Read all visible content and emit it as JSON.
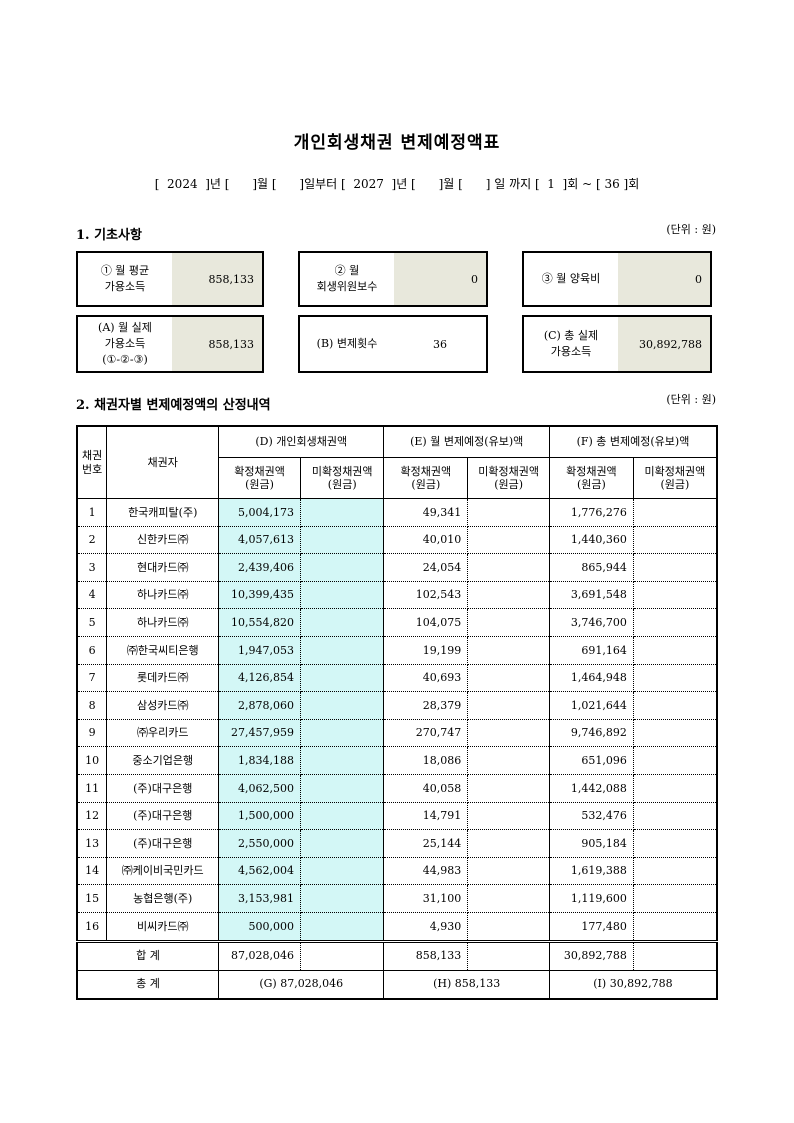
{
  "title": "개인회생채권 변제예정액표",
  "period": "[  2024  ]년 [      ]월 [      ]일부터 [  2027  ]년 [      ]월 [      ] 일 까지 [  1  ]회 ~ [ 36 ]회",
  "section1": {
    "heading": "1. 기초사항",
    "unit": "(단위 : 원)",
    "boxes": [
      {
        "label": "① 월 평균\n가용소득",
        "value": "858,133"
      },
      {
        "label": "② 월\n회생위원보수",
        "value": "0"
      },
      {
        "label": "③ 월 양육비",
        "value": "0"
      },
      {
        "label": "(A) 월 실제\n가용소득\n(①-②-③)",
        "value": "858,133"
      },
      {
        "label": "(B) 변제횟수",
        "value": "36"
      },
      {
        "label": "(C) 총 실제\n가용소득",
        "value": "30,892,788"
      }
    ]
  },
  "section2": {
    "heading": "2. 채권자별 변제예정액의 산정내역",
    "unit": "(단위 : 원)",
    "headers": {
      "no": "채권\n번호",
      "creditor": "채권자",
      "d": "(D) 개인회생채권액",
      "e": "(E) 월 변제예정(유보)액",
      "f": "(F) 총 변제예정(유보)액",
      "confirmed": "확정채권액\n(원금)",
      "unconfirmed": "미확정채권액\n(원금)"
    },
    "rows": [
      {
        "no": "1",
        "name": "한국캐피탈(주)",
        "d": "5,004,173",
        "e": "49,341",
        "f": "1,776,276"
      },
      {
        "no": "2",
        "name": "신한카드㈜",
        "d": "4,057,613",
        "e": "40,010",
        "f": "1,440,360"
      },
      {
        "no": "3",
        "name": "현대카드㈜",
        "d": "2,439,406",
        "e": "24,054",
        "f": "865,944"
      },
      {
        "no": "4",
        "name": "하나카드㈜",
        "d": "10,399,435",
        "e": "102,543",
        "f": "3,691,548"
      },
      {
        "no": "5",
        "name": "하나카드㈜",
        "d": "10,554,820",
        "e": "104,075",
        "f": "3,746,700"
      },
      {
        "no": "6",
        "name": "㈜한국씨티은행",
        "d": "1,947,053",
        "e": "19,199",
        "f": "691,164"
      },
      {
        "no": "7",
        "name": "롯데카드㈜",
        "d": "4,126,854",
        "e": "40,693",
        "f": "1,464,948"
      },
      {
        "no": "8",
        "name": "삼성카드㈜",
        "d": "2,878,060",
        "e": "28,379",
        "f": "1,021,644"
      },
      {
        "no": "9",
        "name": "㈜우리카드",
        "d": "27,457,959",
        "e": "270,747",
        "f": "9,746,892"
      },
      {
        "no": "10",
        "name": "중소기업은행",
        "d": "1,834,188",
        "e": "18,086",
        "f": "651,096"
      },
      {
        "no": "11",
        "name": "(주)대구은행",
        "d": "4,062,500",
        "e": "40,058",
        "f": "1,442,088"
      },
      {
        "no": "12",
        "name": "(주)대구은행",
        "d": "1,500,000",
        "e": "14,791",
        "f": "532,476"
      },
      {
        "no": "13",
        "name": "(주)대구은행",
        "d": "2,550,000",
        "e": "25,144",
        "f": "905,184"
      },
      {
        "no": "14",
        "name": "㈜케이비국민카드",
        "d": "4,562,004",
        "e": "44,983",
        "f": "1,619,388"
      },
      {
        "no": "15",
        "name": "농협은행(주)",
        "d": "3,153,981",
        "e": "31,100",
        "f": "1,119,600"
      },
      {
        "no": "16",
        "name": "비씨카드㈜",
        "d": "500,000",
        "e": "4,930",
        "f": "177,480"
      }
    ],
    "sum": {
      "label": "합 계",
      "d": "87,028,046",
      "e": "858,133",
      "f": "30,892,788"
    },
    "total": {
      "label": "총 계",
      "g": "(G) 87,028,046",
      "h": "(H) 858,133",
      "i": "(I) 30,892,788"
    }
  }
}
